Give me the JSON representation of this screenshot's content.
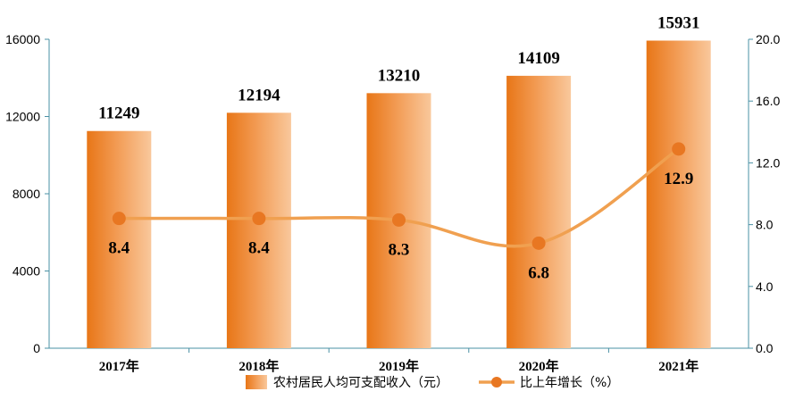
{
  "chart_data": {
    "type": "bar",
    "categories": [
      "2017年",
      "2018年",
      "2019年",
      "2020年",
      "2021年"
    ],
    "series": [
      {
        "name": "农村居民人均可支配收入（元）",
        "type": "bar",
        "axis": "left",
        "values": [
          11249,
          12194,
          13210,
          14109,
          15931
        ]
      },
      {
        "name": "比上年增长（%）",
        "type": "line",
        "axis": "right",
        "values": [
          8.4,
          8.4,
          8.3,
          6.8,
          12.9
        ]
      }
    ],
    "bar_labels": [
      "11249",
      "12194",
      "13210",
      "14109",
      "15931"
    ],
    "line_labels": [
      "8.4",
      "8.4",
      "8.3",
      "6.8",
      "12.9"
    ],
    "y_left": {
      "ylim": [
        0,
        16000
      ],
      "ticks": [
        "0",
        "4000",
        "8000",
        "12000",
        "16000"
      ]
    },
    "y_right": {
      "ylim": [
        0,
        20
      ],
      "ticks": [
        "0.0",
        "4.0",
        "8.0",
        "12.0",
        "16.0",
        "20.0"
      ]
    },
    "legend_position": "bottom",
    "grid": false,
    "colors": {
      "bar_dark": "#e87617",
      "bar_light": "#f9c393",
      "line": "#f0a050",
      "marker": "#e87722",
      "axis": "#4a90a4"
    }
  }
}
